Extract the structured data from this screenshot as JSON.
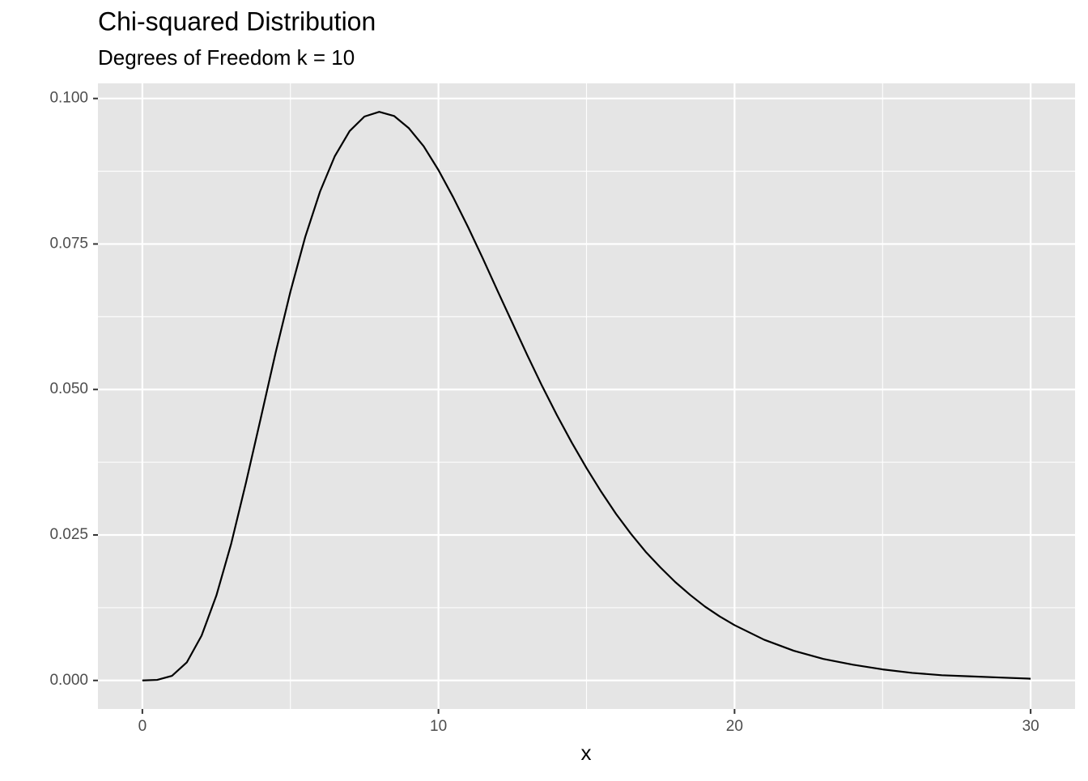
{
  "chart_data": {
    "type": "line",
    "title": "Chi-squared Distribution",
    "subtitle": "Degrees of Freedom k = 10",
    "x_label": "x",
    "x": [
      0,
      0.5,
      1,
      1.5,
      2,
      2.5,
      3,
      3.5,
      4,
      4.5,
      5,
      5.5,
      6,
      6.5,
      7,
      7.5,
      8,
      8.5,
      9,
      9.5,
      10,
      10.5,
      11,
      11.5,
      12,
      12.5,
      13,
      13.5,
      14,
      14.5,
      15,
      15.5,
      16,
      16.5,
      17,
      17.5,
      18,
      18.5,
      19,
      19.5,
      20,
      21,
      22,
      23,
      24,
      25,
      26,
      27,
      28,
      29,
      30
    ],
    "series": [
      {
        "color": "#000000",
        "values": [
          0,
          0.0001,
          0.0008,
          0.0031,
          0.0077,
          0.0146,
          0.0235,
          0.034,
          0.0451,
          0.0563,
          0.0668,
          0.0762,
          0.084,
          0.0901,
          0.0944,
          0.0969,
          0.0977,
          0.097,
          0.0949,
          0.0918,
          0.0877,
          0.083,
          0.0779,
          0.0725,
          0.0669,
          0.0614,
          0.0559,
          0.0506,
          0.0456,
          0.0409,
          0.0365,
          0.0324,
          0.0286,
          0.0252,
          0.0221,
          0.0194,
          0.0169,
          0.0147,
          0.0127,
          0.011,
          0.0095,
          0.007,
          0.0051,
          0.0037,
          0.0027,
          0.0019,
          0.0013,
          0.0009,
          0.0007,
          0.0005,
          0.0003
        ]
      }
    ],
    "xlim": [
      -1.5,
      31.5
    ],
    "xticks": [
      0,
      10,
      20,
      30
    ],
    "ylim": [
      -0.0049,
      0.1026
    ],
    "yticks": [
      {
        "value": 0,
        "label": "0.000"
      },
      {
        "value": 0.025,
        "label": "0.025"
      },
      {
        "value": 0.05,
        "label": "0.050"
      },
      {
        "value": 0.075,
        "label": "0.075"
      },
      {
        "value": 0.1,
        "label": "0.100"
      }
    ],
    "grid": true
  }
}
